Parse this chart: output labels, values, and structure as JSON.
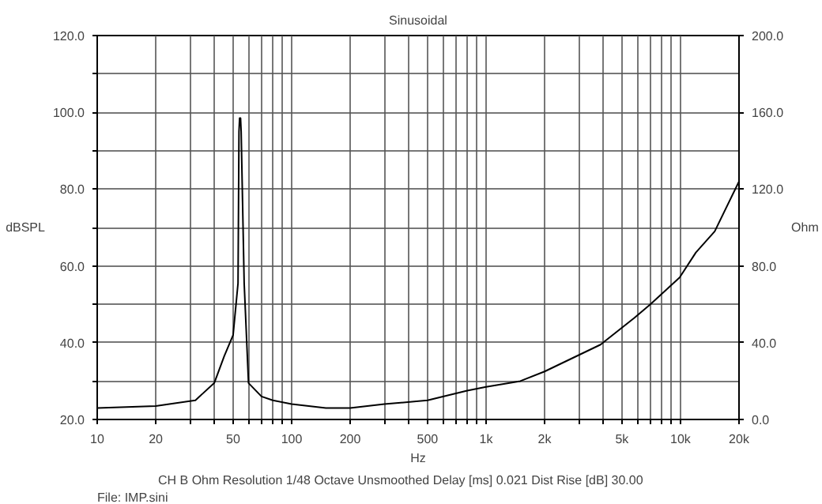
{
  "chart_data": {
    "type": "line",
    "title": "Sinusoidal",
    "xlabel": "Hz",
    "ylabel": "dBSPL",
    "y2label": "Ohm",
    "log": "x",
    "grid": true,
    "marker": "none",
    "line_style": "solid",
    "annotations": [
      "CH B   Ohm   Resolution 1/48 Octave   Unsmoothed   Delay [ms] 0.021   Dist Rise [dB] 30.00",
      "File: IMP.sini"
    ],
    "xlim": [
      10,
      20000
    ],
    "xticks": [
      10,
      20,
      {
        "value": 30,
        "label": null
      },
      {
        "value": 40,
        "label": null
      },
      50,
      {
        "value": 60,
        "label": null
      },
      {
        "value": 70,
        "label": null
      },
      {
        "value": 80,
        "label": null
      },
      {
        "value": 90,
        "label": null
      },
      100,
      200,
      {
        "value": 300,
        "label": null
      },
      {
        "value": 400,
        "label": null
      },
      500,
      {
        "value": 600,
        "label": null
      },
      {
        "value": 700,
        "label": null
      },
      {
        "value": 800,
        "label": null
      },
      {
        "value": 900,
        "label": null
      },
      {
        "value": 1000,
        "label": "1k"
      },
      {
        "value": 2000,
        "label": "2k"
      },
      {
        "value": 3000,
        "label": null
      },
      {
        "value": 4000,
        "label": null
      },
      {
        "value": 5000,
        "label": "5k"
      },
      {
        "value": 6000,
        "label": null
      },
      {
        "value": 7000,
        "label": null
      },
      {
        "value": 8000,
        "label": null
      },
      {
        "value": 9000,
        "label": null
      },
      {
        "value": 10000,
        "label": "10k"
      },
      {
        "value": 20000,
        "label": "20k"
      }
    ],
    "ylim": [
      20,
      120
    ],
    "yticks": [
      {
        "value": 20,
        "label": "20.0"
      },
      {
        "value": 30,
        "label": null
      },
      {
        "value": 40,
        "label": "40.0"
      },
      {
        "value": 50,
        "label": null
      },
      {
        "value": 60,
        "label": "60.0"
      },
      {
        "value": 70,
        "label": null
      },
      {
        "value": 80,
        "label": "80.0"
      },
      {
        "value": 90,
        "label": null
      },
      {
        "value": 100,
        "label": "100.0"
      },
      {
        "value": 110,
        "label": null
      },
      {
        "value": 120,
        "label": "120.0"
      }
    ],
    "y2lim": [
      0,
      200
    ],
    "y2ticks": [
      {
        "value": 0,
        "label": "0.0"
      },
      {
        "value": 40,
        "label": "40.0"
      },
      {
        "value": 80,
        "label": "80.0"
      },
      {
        "value": 120,
        "label": "120.0"
      },
      {
        "value": 160,
        "label": "160.0"
      },
      {
        "value": 200,
        "label": "200.0"
      }
    ],
    "series": [
      {
        "color": "#000000",
        "axis": "y2",
        "x": [
          10,
          20,
          32,
          40,
          45,
          50,
          53,
          53.6,
          54,
          54.6,
          55,
          57,
          60,
          70,
          80,
          100,
          150,
          200,
          300,
          500,
          800,
          1000,
          1500,
          2000,
          3880,
          5800,
          7000,
          9900,
          12000,
          15000,
          20000
        ],
        "values": [
          6,
          7,
          10,
          19,
          33,
          44,
          71,
          150,
          157,
          157,
          150,
          71,
          19,
          12,
          10,
          8,
          6,
          6,
          8,
          10,
          15,
          17,
          20,
          25,
          39,
          53,
          60,
          74,
          87,
          98,
          124
        ]
      }
    ]
  }
}
